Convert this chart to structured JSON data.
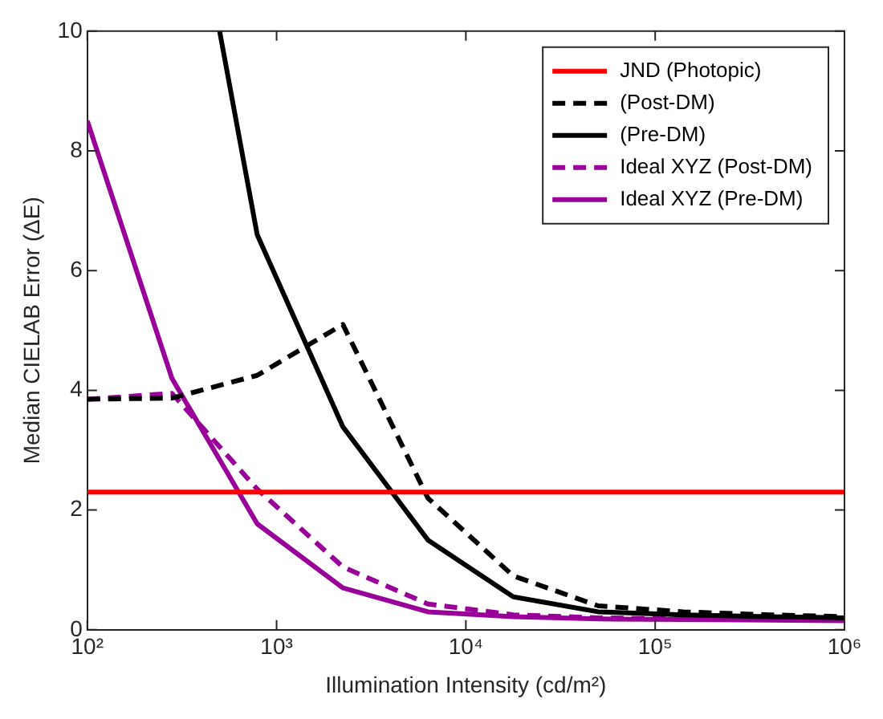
{
  "chart_data": {
    "type": "line",
    "xlabel": "Illumination Intensity (cd/m²)",
    "ylabel": "Median CIELAB Error (ΔE)",
    "log": "x",
    "xlim": [
      100,
      1000000
    ],
    "xticks": [
      {
        "value": 100,
        "label": "10²"
      },
      {
        "value": 1000,
        "label": "10³"
      },
      {
        "value": 10000,
        "label": "10⁴"
      },
      {
        "value": 100000,
        "label": "10⁵"
      },
      {
        "value": 1000000,
        "label": "10⁶"
      }
    ],
    "ylim": [
      0,
      10
    ],
    "yticks": [
      0,
      2,
      4,
      6,
      8,
      10
    ],
    "grid": false,
    "legend": "top right",
    "marker": "none",
    "series": [
      {
        "name": "JND (Photopic)",
        "color": "#ff0000",
        "line_style": "solid",
        "x": [
          100,
          1000000
        ],
        "values": [
          2.3,
          2.3
        ]
      },
      {
        "name": "(Post-DM)",
        "color": "#000000",
        "line_style": "dashed",
        "x": [
          100,
          280,
          790,
          2240,
          6300,
          17800,
          50000,
          141000,
          398000,
          1000000
        ],
        "values": [
          3.85,
          3.87,
          4.25,
          5.1,
          2.2,
          0.9,
          0.4,
          0.3,
          0.25,
          0.22
        ]
      },
      {
        "name": "(Pre-DM)",
        "color": "#000000",
        "line_style": "solid",
        "x": [
          500,
          790,
          2240,
          6300,
          17800,
          50000,
          141000,
          398000,
          1000000
        ],
        "values": [
          10,
          6.6,
          3.39,
          1.5,
          0.55,
          0.3,
          0.25,
          0.22,
          0.2
        ]
      },
      {
        "name": "Ideal XYZ (Post-DM)",
        "color": "#990099",
        "line_style": "dashed",
        "x": [
          100,
          280,
          790,
          2240,
          6300,
          17800,
          50000,
          141000,
          398000,
          1000000
        ],
        "values": [
          3.85,
          3.95,
          2.35,
          1.05,
          0.43,
          0.25,
          0.2,
          0.18,
          0.17,
          0.16
        ]
      },
      {
        "name": "Ideal XYZ (Pre-DM)",
        "color": "#990099",
        "line_style": "solid",
        "x": [
          100,
          280,
          790,
          2240,
          6300,
          17800,
          50000,
          141000,
          398000,
          1000000
        ],
        "values": [
          8.5,
          4.2,
          1.77,
          0.7,
          0.3,
          0.22,
          0.18,
          0.17,
          0.16,
          0.15
        ]
      }
    ]
  }
}
